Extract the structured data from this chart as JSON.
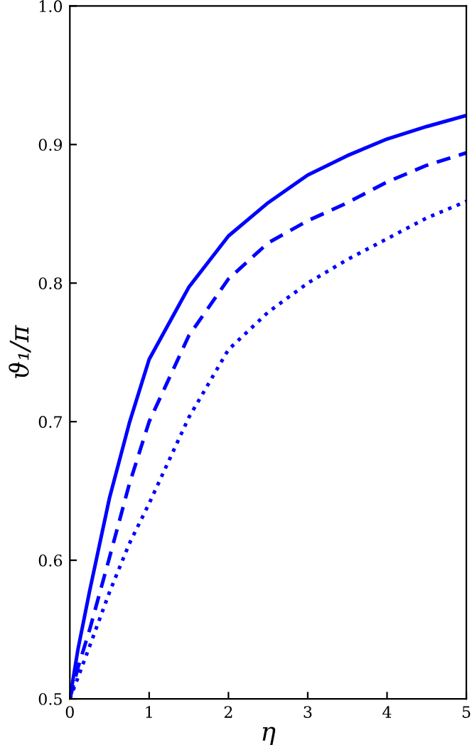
{
  "chart_data": {
    "type": "line",
    "xlabel": "η",
    "ylabel": "ϑ₁/π",
    "xlim": [
      0,
      5
    ],
    "ylim": [
      0.5,
      1.0
    ],
    "xticks": [
      0,
      1,
      2,
      3,
      4,
      5
    ],
    "yticks": [
      {
        "value": 0.5,
        "label": "0.5"
      },
      {
        "value": 0.6,
        "label": "0.6"
      },
      {
        "value": 0.7,
        "label": "0.7"
      },
      {
        "value": 0.8,
        "label": "0.8"
      },
      {
        "value": 0.9,
        "label": "0.9"
      },
      {
        "value": 1.0,
        "label": "1.0"
      }
    ],
    "grid": false,
    "legend": false,
    "marker": "none",
    "series": [
      {
        "color": "#0000ff",
        "line_style": "solid",
        "x": [
          0,
          0.1,
          0.25,
          0.5,
          0.75,
          1,
          1.5,
          2,
          2.5,
          3,
          3.5,
          4,
          4.5,
          5
        ],
        "values": [
          0.5,
          0.535,
          0.578,
          0.645,
          0.699,
          0.745,
          0.797,
          0.834,
          0.858,
          0.878,
          0.892,
          0.904,
          0.913,
          0.921
        ]
      },
      {
        "color": "#0000ff",
        "line_style": "dashed",
        "x": [
          0,
          0.1,
          0.25,
          0.5,
          0.75,
          1,
          1.5,
          2,
          2.5,
          3,
          3.5,
          4,
          4.5,
          5
        ],
        "values": [
          0.5,
          0.522,
          0.55,
          0.602,
          0.655,
          0.7,
          0.762,
          0.803,
          0.829,
          0.845,
          0.858,
          0.873,
          0.885,
          0.894
        ]
      },
      {
        "color": "#0000ff",
        "line_style": "dotted",
        "x": [
          0,
          0.1,
          0.25,
          0.5,
          0.75,
          1,
          1.5,
          2,
          2.5,
          3,
          3.5,
          4,
          4.5,
          5
        ],
        "values": [
          0.5,
          0.515,
          0.538,
          0.577,
          0.612,
          0.641,
          0.703,
          0.752,
          0.779,
          0.8,
          0.817,
          0.832,
          0.847,
          0.859
        ]
      }
    ]
  }
}
